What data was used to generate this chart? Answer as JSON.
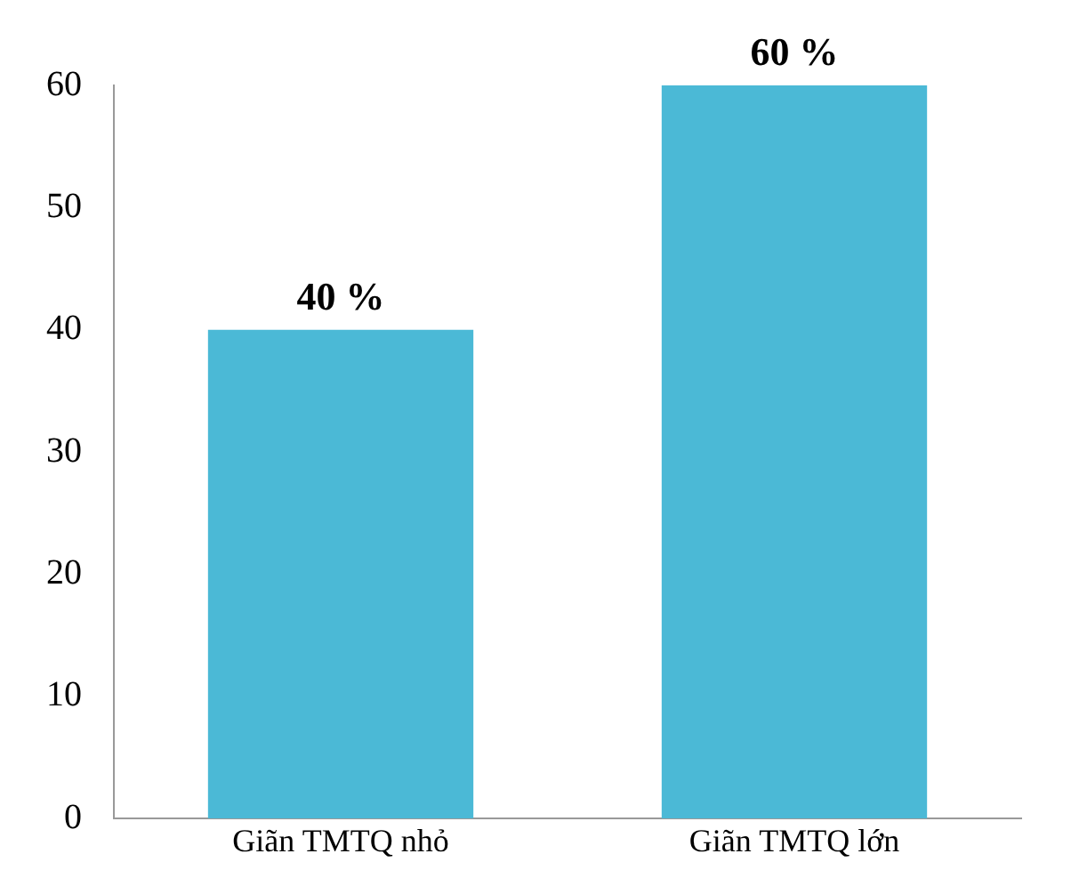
{
  "chart_data": {
    "type": "bar",
    "categories": [
      "Giãn TMTQ nhỏ",
      "Giãn TMTQ lớn"
    ],
    "values": [
      40,
      60
    ],
    "value_labels": [
      "40 %",
      "60 %"
    ],
    "color": "#4bb9d6",
    "ylim": [
      0,
      60
    ],
    "yticks": [
      0,
      10,
      20,
      30,
      40,
      50,
      60
    ],
    "grid": false,
    "legend": false
  }
}
